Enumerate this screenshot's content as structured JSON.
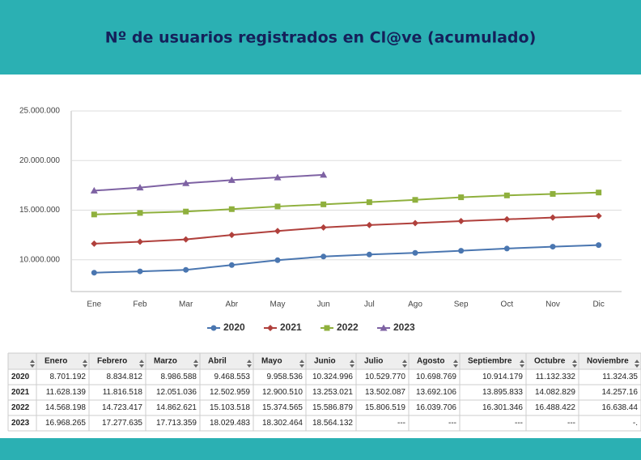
{
  "chart_data": {
    "type": "line",
    "title": "Nº de usuarios registrados en Cl@ve (acumulado)",
    "categories": [
      "Ene",
      "Feb",
      "Mar",
      "Abr",
      "May",
      "Jun",
      "Jul",
      "Ago",
      "Sep",
      "Oct",
      "Nov",
      "Dic"
    ],
    "series": [
      {
        "name": "2020",
        "color": "#4a76b0",
        "marker": "circle",
        "values": [
          8701192,
          8834812,
          8986588,
          9468553,
          9958536,
          10324996,
          10529770,
          10698769,
          10914179,
          11132332,
          11324350,
          11480000
        ]
      },
      {
        "name": "2021",
        "color": "#b0403c",
        "marker": "diamond",
        "values": [
          11628139,
          11816518,
          12051036,
          12502959,
          12900510,
          13253021,
          13502087,
          13692106,
          13895833,
          14082829,
          14257160,
          14420000
        ]
      },
      {
        "name": "2022",
        "color": "#8fb03d",
        "marker": "square",
        "values": [
          14568198,
          14723417,
          14862621,
          15103518,
          15374565,
          15586879,
          15806519,
          16039706,
          16301346,
          16488422,
          16638440,
          16780000
        ]
      },
      {
        "name": "2023",
        "color": "#7e62a3",
        "marker": "triangle",
        "values": [
          16968265,
          17277635,
          17713359,
          18029483,
          18302464,
          18564132,
          null,
          null,
          null,
          null,
          null,
          null
        ]
      }
    ],
    "ylim": [
      6800000,
      25000000
    ],
    "yticks": [
      {
        "value": 10000000,
        "label": "10.000.000"
      },
      {
        "value": 15000000,
        "label": "15.000.000"
      },
      {
        "value": 20000000,
        "label": "20.000.000"
      },
      {
        "value": 25000000,
        "label": "25.000.000"
      }
    ],
    "grid": true,
    "legend": "bottom"
  },
  "table": {
    "header": [
      "Enero",
      "Febrero",
      "Marzo",
      "Abril",
      "Mayo",
      "Junio",
      "Julio",
      "Agosto",
      "Septiembre",
      "Octubre",
      "Noviembre"
    ],
    "rows": [
      [
        "2020",
        "8.701.192",
        "8.834.812",
        "8.986.588",
        "9.468.553",
        "9.958.536",
        "10.324.996",
        "10.529.770",
        "10.698.769",
        "10.914.179",
        "11.132.332",
        "11.324.35"
      ],
      [
        "2021",
        "11.628.139",
        "11.816.518",
        "12.051.036",
        "12.502.959",
        "12.900.510",
        "13.253.021",
        "13.502.087",
        "13.692.106",
        "13.895.833",
        "14.082.829",
        "14.257.16"
      ],
      [
        "2022",
        "14.568.198",
        "14.723.417",
        "14.862.621",
        "15.103.518",
        "15.374.565",
        "15.586.879",
        "15.806.519",
        "16.039.706",
        "16.301.346",
        "16.488.422",
        "16.638.44"
      ],
      [
        "2023",
        "16.968.265",
        "17.277.635",
        "17.713.359",
        "18.029.483",
        "18.302.464",
        "18.564.132",
        "---",
        "---",
        "---",
        "---",
        "-."
      ]
    ]
  }
}
